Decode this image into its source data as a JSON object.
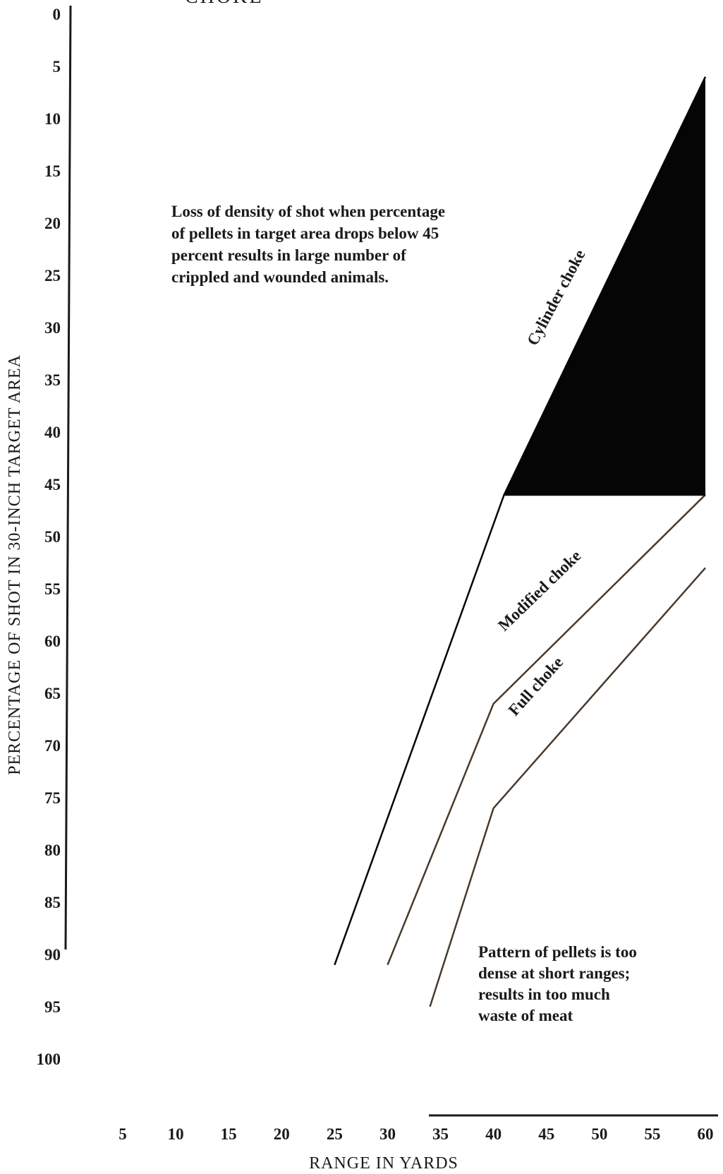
{
  "chart_data": {
    "type": "line",
    "top_fragment": "CHOKE",
    "xlabel": "RANGE IN YARDS",
    "ylabel": "PERCENTAGE OF SHOT IN 30-INCH TARGET AREA",
    "x_ticks": [
      "5",
      "10",
      "15",
      "20",
      "25",
      "30",
      "35",
      "40",
      "45",
      "50",
      "55",
      "60"
    ],
    "y_ticks": [
      "0",
      "5",
      "10",
      "15",
      "20",
      "25",
      "30",
      "35",
      "40",
      "45",
      "50",
      "55",
      "60",
      "65",
      "70",
      "75",
      "80",
      "85",
      "90",
      "95",
      "100"
    ],
    "xlim": [
      5,
      60
    ],
    "ylim": [
      0,
      100
    ],
    "y_inverted": true,
    "threshold": 45,
    "series": [
      {
        "name": "Cylinder choke",
        "x": [
          25,
          41,
          60
        ],
        "y": [
          91,
          46,
          6
        ]
      },
      {
        "name": "Modified choke",
        "x": [
          30,
          40,
          60
        ],
        "y": [
          91,
          66,
          46
        ]
      },
      {
        "name": "Full choke",
        "x": [
          34,
          40,
          60
        ],
        "y": [
          95,
          76,
          53
        ]
      }
    ],
    "annotations": {
      "loss": [
        "Loss of density of shot when percentage",
        "of pellets in target area drops below 45",
        "percent results in large number of",
        "crippled and wounded animals."
      ],
      "dense": [
        "Pattern of pellets is too",
        "dense at short ranges;",
        "results in too much",
        "waste of meat"
      ]
    },
    "colors": {
      "line": "#4a3a2a",
      "fill": "#050505",
      "text": "#1a1a1a"
    }
  }
}
